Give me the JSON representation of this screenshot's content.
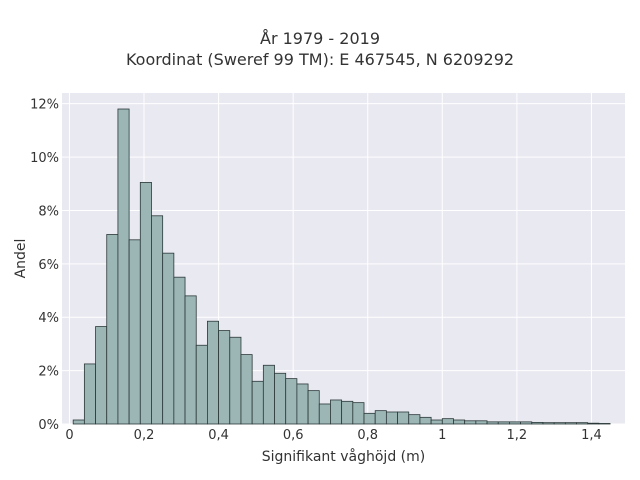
{
  "chart_data": {
    "type": "bar",
    "title": "År 1979 - 2019",
    "subtitle": "Koordinat (Sweref 99 TM): E 467545, N 6209292",
    "xlabel": "Signifikant våghöjd (m)",
    "ylabel": "Andel",
    "xlim": [
      -0.02,
      1.49
    ],
    "ylim": [
      0,
      12.4
    ],
    "x_ticks": [
      0,
      0.2,
      0.4,
      0.6,
      0.8,
      1,
      1.2,
      1.4
    ],
    "x_tick_labels": [
      "0",
      "0,2",
      "0,4",
      "0,6",
      "0,8",
      "1",
      "1,2",
      "1,4"
    ],
    "y_ticks": [
      0,
      2,
      4,
      6,
      8,
      10,
      12
    ],
    "y_tick_labels": [
      "0%",
      "2%",
      "4%",
      "6%",
      "8%",
      "10%",
      "12%"
    ],
    "bin_width": 0.03,
    "bin_start": 0.01,
    "values": [
      0.15,
      2.25,
      3.65,
      7.1,
      11.8,
      6.9,
      9.05,
      7.8,
      6.4,
      5.5,
      4.8,
      2.95,
      3.85,
      3.5,
      3.25,
      2.6,
      1.6,
      2.2,
      1.9,
      1.7,
      1.5,
      1.25,
      0.75,
      0.9,
      0.85,
      0.8,
      0.4,
      0.5,
      0.45,
      0.45,
      0.35,
      0.25,
      0.15,
      0.2,
      0.15,
      0.12,
      0.12,
      0.08,
      0.08,
      0.08,
      0.08,
      0.06,
      0.05,
      0.05,
      0.05,
      0.05,
      0.03,
      0.02
    ],
    "grid": true,
    "colors": {
      "plot_background": "#e9e9f1",
      "grid": "#ffffff",
      "bar_fill": "#9cb6b6",
      "bar_stroke": "#2b3838"
    }
  }
}
